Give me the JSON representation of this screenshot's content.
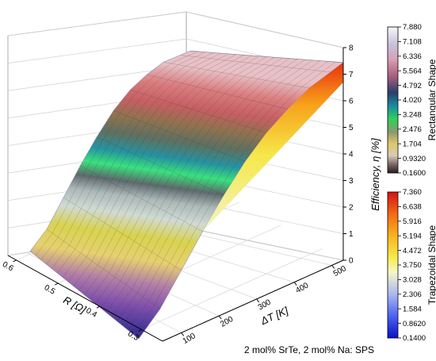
{
  "chart_data": {
    "type": "surface",
    "caption": "2 mol% SrTe, 2 mol% Na: SPS",
    "z_axis": {
      "label": "Efficiency, η [%]",
      "range": [
        0,
        8
      ],
      "ticks": [
        "0",
        "1",
        "2",
        "3",
        "4",
        "5",
        "6",
        "7",
        "8"
      ]
    },
    "x_axis": {
      "label": "ΔT [K]",
      "ticks": [
        "100",
        "200",
        "300",
        "400",
        "500"
      ],
      "range": [
        50,
        530
      ]
    },
    "y_axis": {
      "label": "R [Ω]",
      "ticks": [
        "0.3",
        "0.4",
        "0.5",
        "0.6"
      ],
      "range": [
        0.25,
        0.62
      ]
    },
    "series": [
      {
        "name": "Rectangular Shape",
        "peak_efficiency": 7.88,
        "min_efficiency": 0.16,
        "surface_style": "translucent mesh"
      },
      {
        "name": "Trapezoidal Shape",
        "peak_efficiency": 7.36,
        "min_efficiency": 0.14,
        "surface_style": "filled"
      }
    ],
    "profile": {
      "delta_T": [
        50,
        100,
        150,
        200,
        250,
        300,
        350,
        400,
        450,
        500,
        530
      ],
      "rectangular_eta": [
        0.16,
        1.0,
        2.2,
        3.4,
        4.5,
        5.5,
        6.3,
        6.9,
        7.4,
        7.7,
        7.88
      ],
      "trapezoidal_eta": [
        0.14,
        0.9,
        2.0,
        3.1,
        4.2,
        5.1,
        5.8,
        6.4,
        6.9,
        7.2,
        7.36
      ]
    },
    "colorbars": [
      {
        "title": "Rectangular Shape",
        "ticks": [
          "7.880",
          "7.108",
          "6.336",
          "5.564",
          "4.792",
          "4.020",
          "3.248",
          "2.476",
          "1.704",
          "0.9320",
          "0.1600"
        ]
      },
      {
        "title": "Trapezoidal Shape",
        "ticks": [
          "7.360",
          "6.638",
          "5.916",
          "5.194",
          "4.472",
          "3.750",
          "3.028",
          "2.306",
          "1.584",
          "0.8620",
          "0.1400"
        ]
      }
    ],
    "grid": true
  }
}
